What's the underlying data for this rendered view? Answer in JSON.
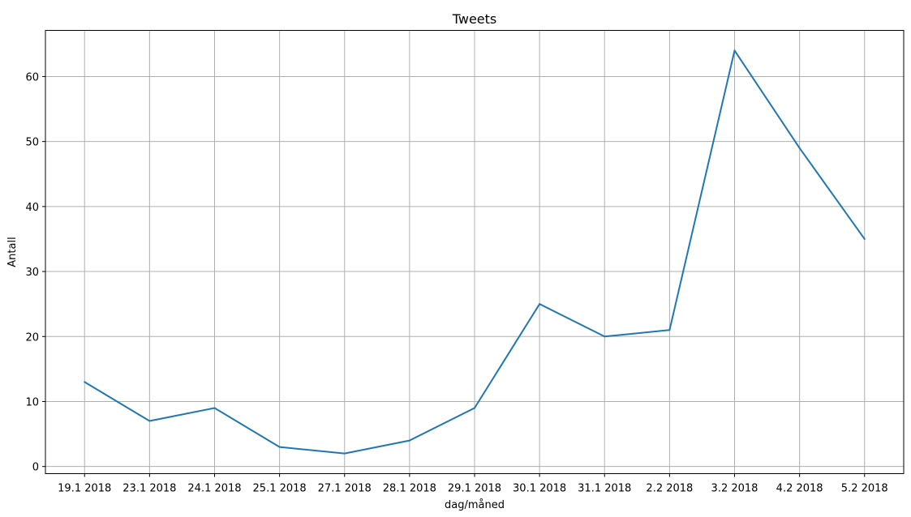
{
  "chart_data": {
    "type": "line",
    "title": "Tweets",
    "xlabel": "dag/måned",
    "ylabel": "Antall",
    "categories": [
      "19.1 2018",
      "23.1 2018",
      "24.1 2018",
      "25.1 2018",
      "27.1 2018",
      "28.1 2018",
      "29.1 2018",
      "30.1 2018",
      "31.1 2018",
      "2.2 2018",
      "3.2 2018",
      "4.2 2018",
      "5.2 2018"
    ],
    "series": [
      {
        "values": [
          13,
          7,
          9,
          3,
          2,
          4,
          9,
          25,
          20,
          21,
          64,
          49,
          35
        ]
      }
    ],
    "yticks": [
      0,
      10,
      20,
      30,
      40,
      50,
      60
    ],
    "ylim": [
      -1.1,
      67.1
    ],
    "grid": true,
    "line_color": "#1f77b4",
    "grid_color": "#b0b0b0"
  }
}
